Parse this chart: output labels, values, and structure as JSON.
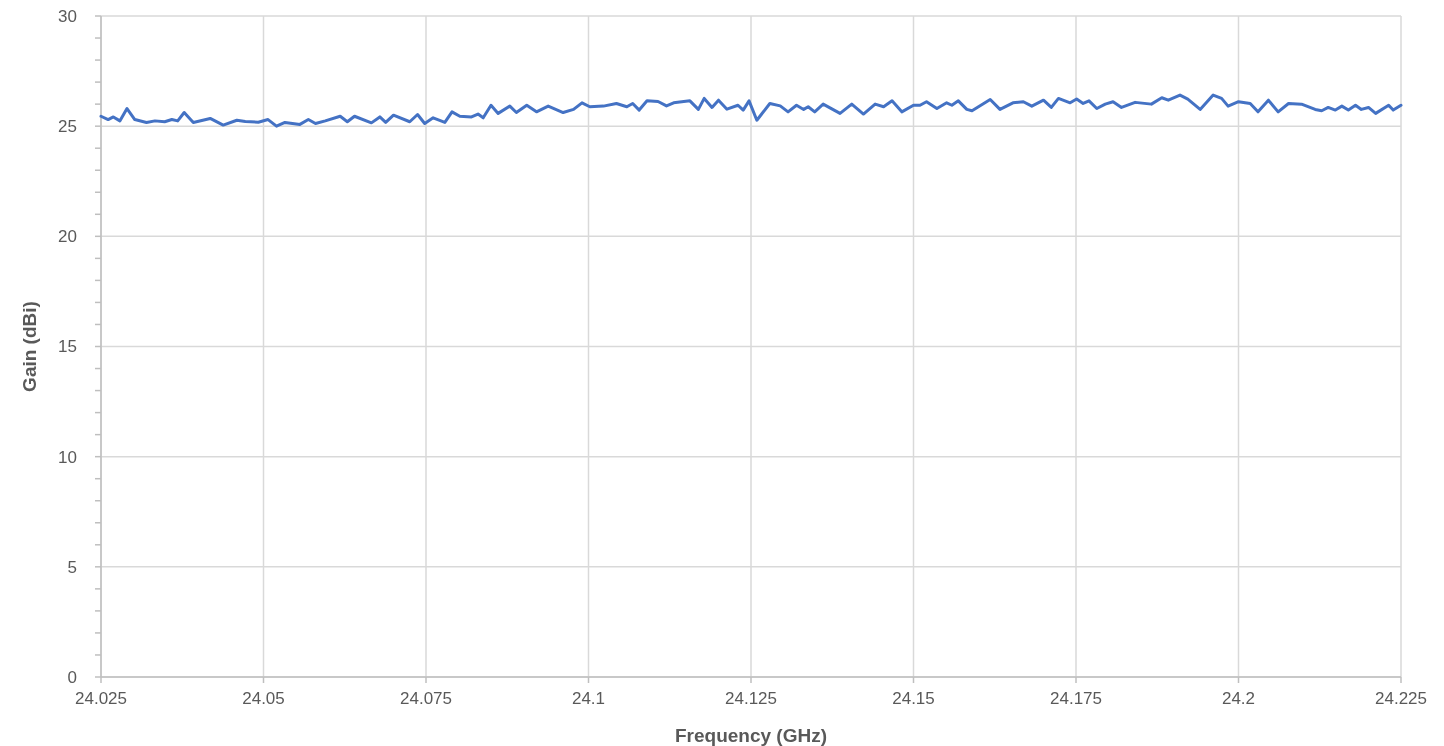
{
  "chart_data": {
    "type": "line",
    "xlabel": "Frequency (GHz)",
    "ylabel": "Gain (dBi)",
    "xlim": [
      24.025,
      24.225
    ],
    "xticks": [
      24.025,
      24.05,
      24.075,
      24.1,
      24.125,
      24.15,
      24.175,
      24.2,
      24.225
    ],
    "ylim": [
      0,
      30
    ],
    "yticks": [
      0,
      {
        "value": 1,
        "label": null
      },
      {
        "value": 2,
        "label": null
      },
      {
        "value": 3,
        "label": null
      },
      {
        "value": 4,
        "label": null
      },
      5,
      {
        "value": 6,
        "label": null
      },
      {
        "value": 7,
        "label": null
      },
      {
        "value": 8,
        "label": null
      },
      {
        "value": 9,
        "label": null
      },
      10,
      {
        "value": 11,
        "label": null
      },
      {
        "value": 12,
        "label": null
      },
      {
        "value": 13,
        "label": null
      },
      {
        "value": 14,
        "label": null
      },
      15,
      {
        "value": 16,
        "label": null
      },
      {
        "value": 17,
        "label": null
      },
      {
        "value": 18,
        "label": null
      },
      {
        "value": 19,
        "label": null
      },
      20,
      {
        "value": 21,
        "label": null
      },
      {
        "value": 22,
        "label": null
      },
      {
        "value": 23,
        "label": null
      },
      {
        "value": 24,
        "label": null
      },
      25,
      {
        "value": 26,
        "label": null
      },
      {
        "value": 27,
        "label": null
      },
      {
        "value": 28,
        "label": null
      },
      {
        "value": 29,
        "label": null
      },
      30
    ],
    "grid": true,
    "marker": "none",
    "line_style": "solid",
    "x": [
      24.025,
      24.0261,
      24.0269,
      24.0279,
      24.029,
      24.0302,
      24.032,
      24.0333,
      24.0348,
      24.0359,
      24.0368,
      24.0378,
      24.0392,
      24.0418,
      24.0438,
      24.0459,
      24.0472,
      24.0492,
      24.0507,
      24.052,
      24.0533,
      24.0556,
      24.0569,
      24.058,
      24.0595,
      24.0618,
      24.0629,
      24.064,
      24.0666,
      24.0679,
      24.0688,
      24.07,
      24.0725,
      24.0737,
      24.0748,
      24.0761,
      24.0779,
      24.079,
      24.0802,
      24.082,
      24.083,
      24.0838,
      24.085,
      24.0861,
      24.0879,
      24.0889,
      24.0905,
      24.092,
      24.0938,
      24.0961,
      24.0977,
      24.099,
      24.1002,
      24.1023,
      24.1043,
      24.1059,
      24.1068,
      24.1078,
      24.109,
      24.1107,
      24.112,
      24.1131,
      24.1156,
      24.1169,
      24.1178,
      24.119,
      24.12,
      24.1213,
      24.123,
      24.1238,
      24.1247,
      24.1259,
      24.1279,
      24.1295,
      24.1307,
      24.132,
      24.1331,
      24.1338,
      24.1348,
      24.1361,
      24.1387,
      24.1405,
      24.1423,
      24.1441,
      24.1454,
      24.1467,
      24.1482,
      24.15,
      24.151,
      24.152,
      24.1536,
      24.1551,
      24.1559,
      24.1569,
      24.1582,
      24.159,
      24.1618,
      24.1633,
      24.1653,
      24.1669,
      24.1682,
      24.17,
      24.1712,
      24.1723,
      24.1741,
      24.1751,
      24.1761,
      24.177,
      24.1782,
      24.1795,
      24.1807,
      24.182,
      24.1841,
      24.1866,
      24.1882,
      24.1892,
      24.191,
      24.1922,
      24.1941,
      24.1961,
      24.1974,
      24.1984,
      24.2,
      24.2018,
      24.203,
      24.2046,
      24.2061,
      24.2077,
      24.2097,
      24.2118,
      24.2128,
      24.2138,
      24.2149,
      24.2159,
      24.2169,
      24.218,
      24.2189,
      24.22,
      24.2211,
      24.2231,
      24.2238,
      24.225
    ],
    "series": [
      {
        "color": "#4472c4",
        "values": [
          25.45,
          25.3,
          25.42,
          25.24,
          25.8,
          25.3,
          25.17,
          25.24,
          25.2,
          25.3,
          25.24,
          25.62,
          25.17,
          25.35,
          25.05,
          25.27,
          25.21,
          25.18,
          25.3,
          25.0,
          25.17,
          25.08,
          25.3,
          25.12,
          25.24,
          25.45,
          25.2,
          25.45,
          25.15,
          25.42,
          25.17,
          25.5,
          25.2,
          25.53,
          25.12,
          25.38,
          25.17,
          25.65,
          25.45,
          25.42,
          25.55,
          25.38,
          25.95,
          25.58,
          25.91,
          25.62,
          25.95,
          25.65,
          25.91,
          25.62,
          25.76,
          26.06,
          25.88,
          25.91,
          26.03,
          25.88,
          26.03,
          25.73,
          26.15,
          26.12,
          25.92,
          26.06,
          26.15,
          25.76,
          26.26,
          25.85,
          26.18,
          25.77,
          25.95,
          25.73,
          26.15,
          25.27,
          26.03,
          25.92,
          25.65,
          25.95,
          25.76,
          25.88,
          25.65,
          26.0,
          25.58,
          26.0,
          25.55,
          26.0,
          25.88,
          26.15,
          25.65,
          25.95,
          25.95,
          26.11,
          25.8,
          26.06,
          25.95,
          26.15,
          25.76,
          25.7,
          26.21,
          25.76,
          26.06,
          26.11,
          25.91,
          26.18,
          25.85,
          26.26,
          26.06,
          26.23,
          26.03,
          26.15,
          25.8,
          26.0,
          26.11,
          25.85,
          26.08,
          26.0,
          26.29,
          26.18,
          26.41,
          26.23,
          25.76,
          26.41,
          26.26,
          25.91,
          26.11,
          26.03,
          25.65,
          26.18,
          25.65,
          26.03,
          26.0,
          25.76,
          25.7,
          25.85,
          25.73,
          25.91,
          25.73,
          25.95,
          25.76,
          25.85,
          25.58,
          25.95,
          25.73,
          25.95
        ]
      }
    ]
  }
}
